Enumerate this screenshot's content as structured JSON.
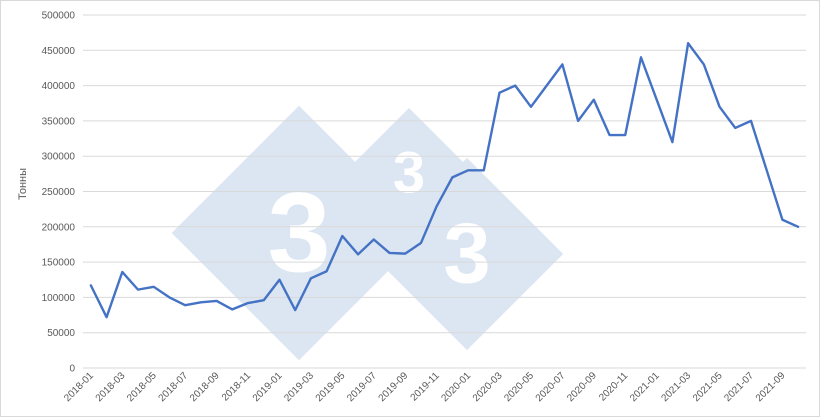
{
  "chart_data": {
    "type": "line",
    "ylabel": "Тонны",
    "ylim": [
      0,
      500000
    ],
    "yticks": [
      0,
      50000,
      100000,
      150000,
      200000,
      250000,
      300000,
      350000,
      400000,
      450000,
      500000
    ],
    "grid": true,
    "x": [
      "2018-01",
      "2018-02",
      "2018-03",
      "2018-04",
      "2018-05",
      "2018-06",
      "2018-07",
      "2018-08",
      "2018-09",
      "2018-10",
      "2018-11",
      "2018-12",
      "2019-01",
      "2019-02",
      "2019-03",
      "2019-04",
      "2019-05",
      "2019-06",
      "2019-07",
      "2019-08",
      "2019-09",
      "2019-10",
      "2019-11",
      "2019-12",
      "2020-01",
      "2020-02",
      "2020-03",
      "2020-04",
      "2020-05",
      "2020-06",
      "2020-07",
      "2020-08",
      "2020-09",
      "2020-10",
      "2020-11",
      "2020-12",
      "2021-01",
      "2021-02",
      "2021-03",
      "2021-04",
      "2021-05",
      "2021-06",
      "2021-07",
      "2021-08",
      "2021-09",
      "2021-10"
    ],
    "x_tick_labels": [
      "2018-01",
      "2018-03",
      "2018-05",
      "2018-07",
      "2018-09",
      "2018-11",
      "2019-01",
      "2019-03",
      "2019-05",
      "2019-07",
      "2019-09",
      "2019-11",
      "2020-01",
      "2020-03",
      "2020-05",
      "2020-07",
      "2020-09",
      "2020-11",
      "2021-01",
      "2021-03",
      "2021-05",
      "2021-07",
      "2021-09"
    ],
    "series": [
      {
        "color": "#4472c4",
        "values": [
          117000,
          72000,
          136000,
          111000,
          115000,
          100000,
          89000,
          93000,
          95000,
          83000,
          92000,
          96000,
          125000,
          82000,
          127000,
          137000,
          187000,
          161000,
          182000,
          163000,
          162000,
          177000,
          229000,
          270000,
          280000,
          280000,
          390000,
          400000,
          370000,
          400000,
          430000,
          350000,
          380000,
          330000,
          330000,
          440000,
          380000,
          320000,
          460000,
          430000,
          370000,
          340000,
          350000,
          280000,
          210000,
          200000
        ]
      }
    ]
  },
  "watermark": {
    "glyph": "3",
    "color": "#dce6f2",
    "icon": "3tres3-logo-watermark"
  }
}
